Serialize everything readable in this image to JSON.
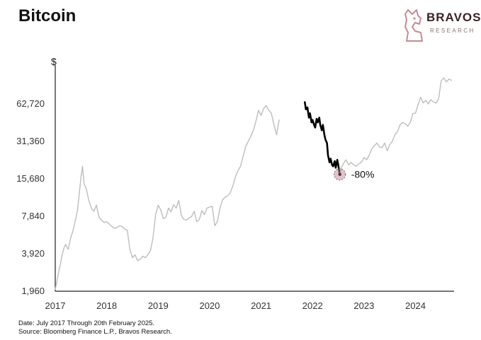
{
  "header": {
    "title": "Bitcoin"
  },
  "brand": {
    "name": "BRAVOS",
    "tagline": "RESEARCH",
    "color": "#c58a94"
  },
  "footer": {
    "date_note": "Date: July 2017 Through 20th February 2025.",
    "source_note": "Source: Bloomberg Finance L.P., Bravos Research."
  },
  "chart_data": {
    "type": "line",
    "title": "Bitcoin",
    "ylabel": "$",
    "xlabel": "",
    "yscale": "log",
    "y_ticks": [
      1960,
      3920,
      7840,
      15680,
      31360,
      62720
    ],
    "y_tick_labels": [
      "1,960",
      "3,920",
      "7,840",
      "15,680",
      "31,360",
      "62,720"
    ],
    "x_ticks": [
      2017,
      2018,
      2019,
      2020,
      2021,
      2022,
      2023,
      2024
    ],
    "x_tick_labels": [
      "2017",
      "2018",
      "2019",
      "2020",
      "2021",
      "2022",
      "2023",
      "2024"
    ],
    "ylim": [
      1960,
      125000
    ],
    "xlim": [
      2017.0,
      2024.75
    ],
    "grid": false,
    "colors": {
      "price": "#bdbdbd",
      "drawdown": "#000000",
      "marker": "#b5838d"
    },
    "series": [
      {
        "role": "price",
        "x": [
          2017.0,
          2017.03,
          2017.06,
          2017.1,
          2017.13,
          2017.17,
          2017.2,
          2017.25,
          2017.3,
          2017.35,
          2017.4,
          2017.43,
          2017.46,
          2017.5,
          2017.53,
          2017.56,
          2017.6,
          2017.65,
          2017.7,
          2017.75,
          2017.8,
          2017.85,
          2017.9,
          2017.95,
          2018.0,
          2018.05,
          2018.1,
          2018.15,
          2018.2,
          2018.25,
          2018.3,
          2018.35,
          2018.4,
          2018.45,
          2018.5,
          2018.55,
          2018.6,
          2018.65,
          2018.7,
          2018.75,
          2018.8,
          2018.85,
          2018.9,
          2018.95,
          2019.0,
          2019.05,
          2019.1,
          2019.15,
          2019.2,
          2019.25,
          2019.3,
          2019.35,
          2019.4,
          2019.45,
          2019.5,
          2019.55,
          2019.6,
          2019.65,
          2019.7,
          2019.75,
          2019.8,
          2019.85,
          2019.9,
          2019.95,
          2020.0,
          2020.05,
          2020.1,
          2020.15,
          2020.2,
          2020.25,
          2020.3,
          2020.35,
          2020.4,
          2020.45,
          2020.5,
          2020.55,
          2020.6,
          2020.65,
          2020.7,
          2020.75,
          2020.8,
          2020.85,
          2020.9,
          2020.95,
          2021.0,
          2021.05,
          2021.1,
          2021.15,
          2021.2,
          2021.25,
          2021.3,
          2021.35
        ],
        "y": [
          2000,
          2300,
          2700,
          3200,
          3700,
          4300,
          4600,
          4200,
          5200,
          6000,
          7500,
          8500,
          11000,
          16000,
          19500,
          14000,
          13000,
          10500,
          9000,
          8500,
          9500,
          7600,
          7200,
          6900,
          7000,
          6700,
          6400,
          6200,
          6300,
          6500,
          6400,
          6100,
          6000,
          4200,
          3600,
          3800,
          3400,
          3500,
          3700,
          3600,
          3800,
          4100,
          5200,
          8000,
          9500,
          8700,
          7400,
          7600,
          9000,
          8400,
          9600,
          9000,
          10400,
          7900,
          7300,
          7200,
          7500,
          7700,
          8500,
          7000,
          7300,
          8600,
          8000,
          9000,
          9200,
          9300,
          6500,
          7000,
          9000,
          10500,
          11000,
          11300,
          12000,
          13500,
          16000,
          18000,
          19500,
          23500,
          28000,
          31000,
          34000,
          38000,
          45000,
          55000,
          50000,
          57000,
          60000,
          55000,
          52000,
          42000,
          35000,
          46000
        ]
      },
      {
        "role": "drawdown",
        "x": [
          2021.85,
          2021.87,
          2021.9,
          2021.93,
          2021.95,
          2021.98,
          2022.0,
          2022.03,
          2022.05,
          2022.08,
          2022.1,
          2022.13,
          2022.15,
          2022.18,
          2022.2,
          2022.23,
          2022.25,
          2022.28,
          2022.3,
          2022.33,
          2022.35,
          2022.38,
          2022.4,
          2022.43,
          2022.45,
          2022.48,
          2022.5,
          2022.53
        ],
        "y": [
          64000,
          56000,
          58000,
          48000,
          52000,
          44000,
          46000,
          42000,
          40000,
          47000,
          44000,
          48000,
          42000,
          38000,
          42000,
          35000,
          32000,
          30000,
          24000,
          21000,
          22500,
          20000,
          19500,
          21500,
          19000,
          22000,
          20000,
          16800
        ]
      },
      {
        "role": "price",
        "x": [
          2022.53,
          2022.56,
          2022.6,
          2022.65,
          2022.7,
          2022.75,
          2022.8,
          2022.85,
          2022.9,
          2022.95,
          2023.0,
          2023.05,
          2023.1,
          2023.15,
          2023.2,
          2023.25,
          2023.3,
          2023.35,
          2023.4,
          2023.45,
          2023.5,
          2023.55,
          2023.6,
          2023.65,
          2023.7,
          2023.75,
          2023.8,
          2023.85,
          2023.9,
          2023.95,
          2024.0,
          2024.05,
          2024.1,
          2024.15,
          2024.2,
          2024.25,
          2024.3,
          2024.35,
          2024.4,
          2024.45,
          2024.5,
          2024.55,
          2024.6,
          2024.65,
          2024.7
        ],
        "y": [
          16800,
          19000,
          20500,
          22000,
          20000,
          21000,
          20000,
          19500,
          20500,
          21000,
          23000,
          22000,
          24000,
          27000,
          28500,
          30000,
          28000,
          27500,
          30000,
          26000,
          29000,
          31000,
          35000,
          37000,
          42000,
          44000,
          43000,
          41000,
          44000,
          52000,
          52000,
          61000,
          70000,
          63000,
          66000,
          62000,
          67000,
          64000,
          63000,
          68000,
          95000,
          100000,
          93000,
          98000,
          96000
        ]
      }
    ],
    "annotations": [
      {
        "label": "-80%",
        "x": 2022.53,
        "y": 16800
      }
    ]
  }
}
